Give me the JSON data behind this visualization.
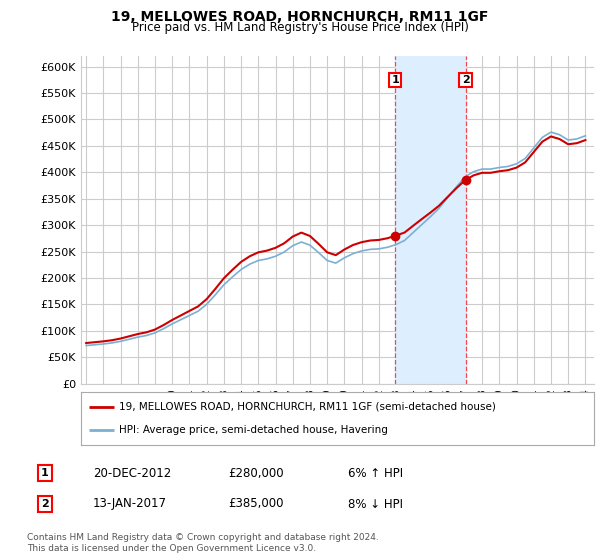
{
  "title": "19, MELLOWES ROAD, HORNCHURCH, RM11 1GF",
  "subtitle": "Price paid vs. HM Land Registry's House Price Index (HPI)",
  "ylabel_ticks": [
    "£0",
    "£50K",
    "£100K",
    "£150K",
    "£200K",
    "£250K",
    "£300K",
    "£350K",
    "£400K",
    "£450K",
    "£500K",
    "£550K",
    "£600K"
  ],
  "ylim": [
    0,
    620000
  ],
  "ytick_vals": [
    0,
    50000,
    100000,
    150000,
    200000,
    250000,
    300000,
    350000,
    400000,
    450000,
    500000,
    550000,
    600000
  ],
  "legend_property": "19, MELLOWES ROAD, HORNCHURCH, RM11 1GF (semi-detached house)",
  "legend_hpi": "HPI: Average price, semi-detached house, Havering",
  "footer": "Contains HM Land Registry data © Crown copyright and database right 2024.\nThis data is licensed under the Open Government Licence v3.0.",
  "property_line_color": "#cc0000",
  "hpi_line_color": "#7bafd4",
  "shade_color": "#ddeeff",
  "grid_color": "#cccccc",
  "background_color": "#ffffff",
  "sale1_year": 2012.96,
  "sale1_value": 280000,
  "sale2_year": 2017.04,
  "sale2_value": 385000,
  "table_rows": [
    {
      "label": "1",
      "date": "20-DEC-2012",
      "price": "£280,000",
      "pct": "6% ↑ HPI"
    },
    {
      "label": "2",
      "date": "13-JAN-2017",
      "price": "£385,000",
      "pct": "8% ↓ HPI"
    }
  ]
}
